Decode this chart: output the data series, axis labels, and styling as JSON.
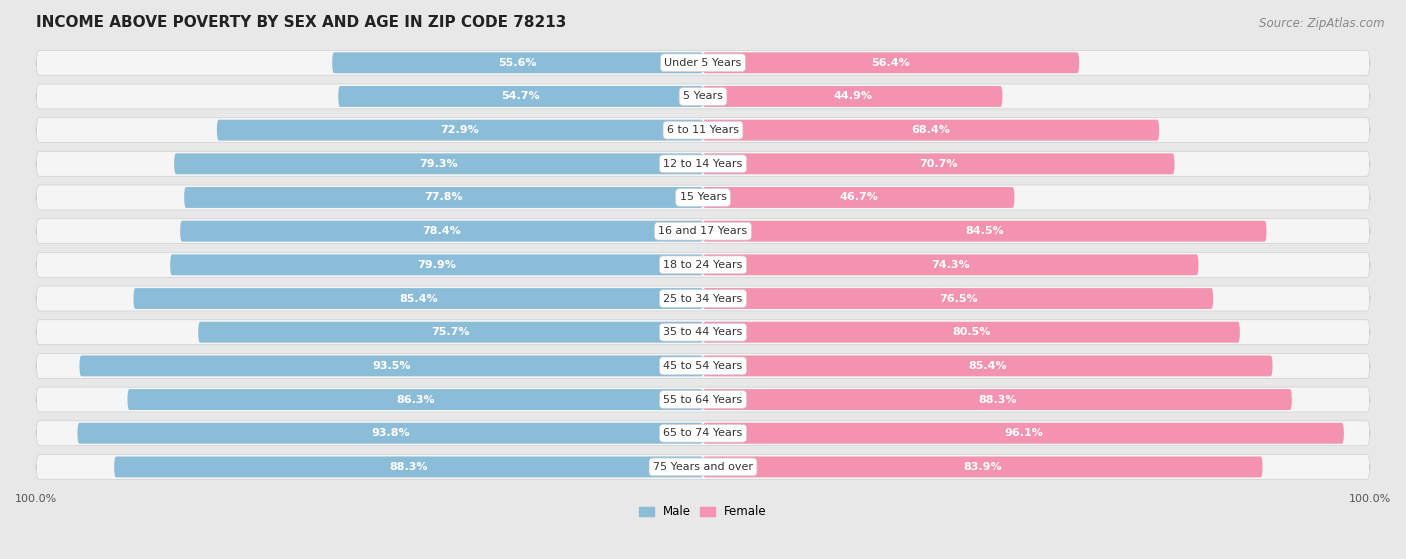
{
  "title": "INCOME ABOVE POVERTY BY SEX AND AGE IN ZIP CODE 78213",
  "source": "Source: ZipAtlas.com",
  "categories": [
    "Under 5 Years",
    "5 Years",
    "6 to 11 Years",
    "12 to 14 Years",
    "15 Years",
    "16 and 17 Years",
    "18 to 24 Years",
    "25 to 34 Years",
    "35 to 44 Years",
    "45 to 54 Years",
    "55 to 64 Years",
    "65 to 74 Years",
    "75 Years and over"
  ],
  "male": [
    55.6,
    54.7,
    72.9,
    79.3,
    77.8,
    78.4,
    79.9,
    85.4,
    75.7,
    93.5,
    86.3,
    93.8,
    88.3
  ],
  "female": [
    56.4,
    44.9,
    68.4,
    70.7,
    46.7,
    84.5,
    74.3,
    76.5,
    80.5,
    85.4,
    88.3,
    96.1,
    83.9
  ],
  "male_color": "#8bbdd9",
  "female_color": "#f393b0",
  "bg_color": "#e8e8e8",
  "bar_bg_color": "#f5f5f5",
  "row_border_color": "#d0d0d0",
  "title_fontsize": 11,
  "source_fontsize": 8.5,
  "label_fontsize": 8,
  "category_fontsize": 8,
  "max_val": 100.0,
  "legend_male": "Male",
  "legend_female": "Female"
}
